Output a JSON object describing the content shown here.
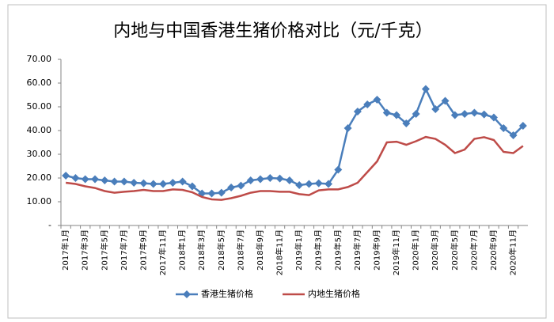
{
  "chart_data": {
    "type": "line",
    "title": "内地与中国香港生猪价格对比（元/千克）",
    "categories": [
      "2017年1月",
      null,
      "2017年3月",
      null,
      "2017年5月",
      null,
      "2017年7月",
      null,
      "2017年9月",
      null,
      "2017年11月",
      null,
      "2018年1月",
      null,
      "2018年3月",
      null,
      "2018年5月",
      null,
      "2018年7月",
      null,
      "2018年9月",
      null,
      "2018年11月",
      null,
      "2019年1月",
      null,
      "2019年3月",
      null,
      "2019年5月",
      null,
      "2019年7月",
      null,
      "2019年9月",
      null,
      "2019年11月",
      null,
      "2020年1月",
      null,
      "2020年3月",
      null,
      "2020年5月",
      null,
      "2020年7月",
      null,
      "2020年9月",
      null,
      "2020年11月",
      null
    ],
    "series": [
      {
        "name": "香港生猪价格",
        "color": "#4a7ebb",
        "marker": "diamond",
        "values": [
          21,
          20,
          19.5,
          19.5,
          19,
          18.5,
          18.5,
          18,
          17.8,
          17.5,
          17.5,
          18,
          18.5,
          16.5,
          13.5,
          13.5,
          13.8,
          16,
          16.8,
          19,
          19.5,
          20,
          19.8,
          19,
          17,
          17.5,
          17.8,
          17.5,
          23.5,
          41,
          48,
          51,
          53,
          47.5,
          46.5,
          43,
          47,
          57.5,
          49,
          52.5,
          46.5,
          47,
          47.5,
          46.8,
          45.5,
          41,
          38,
          42
        ]
      },
      {
        "name": "内地生猪价格",
        "color": "#be4b48",
        "marker": null,
        "values": [
          18,
          17.5,
          16.5,
          15.8,
          14.5,
          13.8,
          14.2,
          14.5,
          15,
          14.5,
          14.5,
          15.2,
          15,
          14,
          12,
          11,
          10.8,
          11.5,
          12.5,
          13.8,
          14.5,
          14.5,
          14.2,
          14.2,
          13.2,
          12.8,
          14.8,
          15.2,
          15.2,
          16.2,
          18,
          22.5,
          27,
          35,
          35.3,
          34,
          35.5,
          37.3,
          36.5,
          34,
          30.5,
          32,
          36.5,
          37.2,
          36,
          31,
          30.5,
          33.5
        ]
      }
    ],
    "ylim": [
      0,
      70
    ],
    "yticks": [
      {
        "value": 0,
        "label": "-"
      },
      {
        "value": 10,
        "label": "10.00"
      },
      {
        "value": 20,
        "label": "20.00"
      },
      {
        "value": 30,
        "label": "30.00"
      },
      {
        "value": 40,
        "label": "40.00"
      },
      {
        "value": 50,
        "label": "50.00"
      },
      {
        "value": 60,
        "label": "60.00"
      },
      {
        "value": 70,
        "label": "70.00"
      }
    ],
    "legend": "bottom"
  }
}
